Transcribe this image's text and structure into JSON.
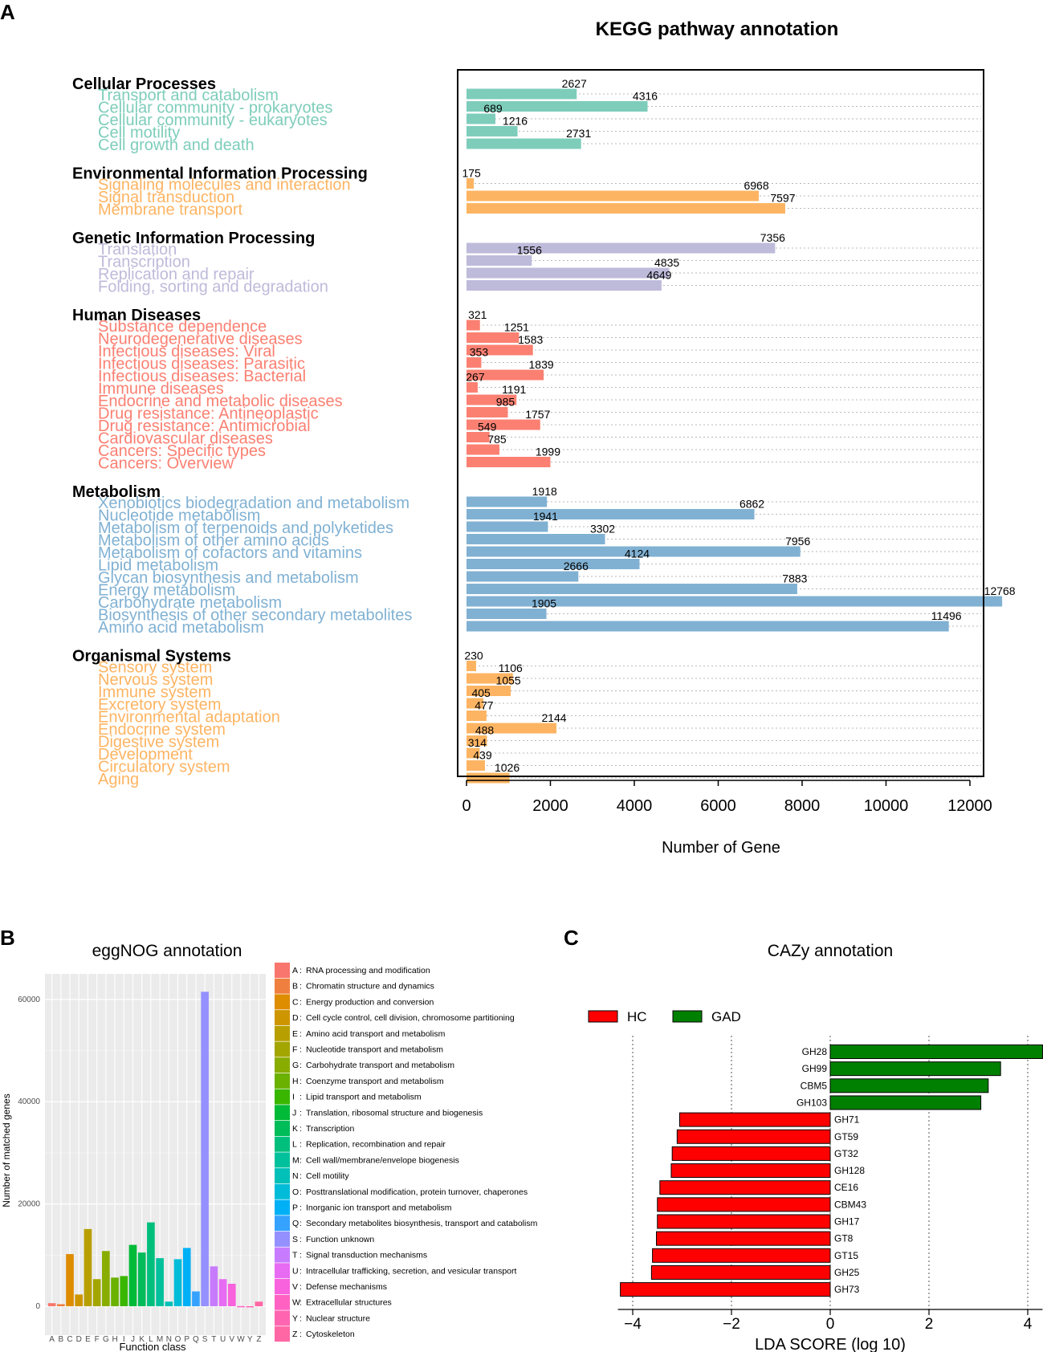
{
  "panel_letters": [
    "A",
    "B",
    "C"
  ],
  "chart_data": [
    {
      "panel": "A",
      "type": "bar",
      "orientation": "horizontal",
      "title": "KEGG pathway annotation",
      "xlabel": "Number of Gene",
      "xlim": [
        0,
        13000
      ],
      "xticks": [
        0,
        2000,
        4000,
        6000,
        8000,
        10000,
        12000
      ],
      "groups": [
        {
          "name": "Cellular Processes",
          "color": "#7ecdbb",
          "items": [
            {
              "label": "Transport and catabolism",
              "value": 2627
            },
            {
              "label": "Cellular community - prokaryotes",
              "value": 4316
            },
            {
              "label": "Cellular community - eukaryotes",
              "value": 689
            },
            {
              "label": "Cell motility",
              "value": 1216
            },
            {
              "label": "Cell growth and death",
              "value": 2731
            }
          ]
        },
        {
          "name": "Environmental Information Processing",
          "color": "#fdb462",
          "items": [
            {
              "label": "Signaling molecules and interaction",
              "value": 175
            },
            {
              "label": "Signal transduction",
              "value": 6968
            },
            {
              "label": "Membrane transport",
              "value": 7597
            }
          ]
        },
        {
          "name": "Genetic Information Processing",
          "color": "#bebada",
          "items": [
            {
              "label": "Translation",
              "value": 7356
            },
            {
              "label": "Transcription",
              "value": 1556
            },
            {
              "label": "Replication and repair",
              "value": 4835
            },
            {
              "label": "Folding, sorting and degradation",
              "value": 4649
            }
          ]
        },
        {
          "name": "Human Diseases",
          "color": "#fb8072",
          "items": [
            {
              "label": "Substance dependence",
              "value": 321
            },
            {
              "label": "Neurodegenerative diseases",
              "value": 1251
            },
            {
              "label": "Infectious diseases: Viral",
              "value": 1583
            },
            {
              "label": "Infectious diseases: Parasitic",
              "value": 353
            },
            {
              "label": "Infectious diseases: Bacterial",
              "value": 1839
            },
            {
              "label": "Immune diseases",
              "value": 267
            },
            {
              "label": "Endocrine and metabolic diseases",
              "value": 1191
            },
            {
              "label": "Drug resistance: Antineoplastic",
              "value": 985
            },
            {
              "label": "Drug resistance: Antimicrobial",
              "value": 1757
            },
            {
              "label": "Cardiovascular diseases",
              "value": 549
            },
            {
              "label": "Cancers: Specific types",
              "value": 785
            },
            {
              "label": "Cancers: Overview",
              "value": 1999
            }
          ]
        },
        {
          "name": "Metabolism",
          "color": "#80b1d3",
          "items": [
            {
              "label": "Xenobiotics biodegradation and metabolism",
              "value": 1918
            },
            {
              "label": "Nucleotide metabolism",
              "value": 6862
            },
            {
              "label": "Metabolism of terpenoids and polyketides",
              "value": 1941
            },
            {
              "label": "Metabolism of other amino acids",
              "value": 3302
            },
            {
              "label": "Metabolism of cofactors and vitamins",
              "value": 7956
            },
            {
              "label": "Lipid metabolism",
              "value": 4124
            },
            {
              "label": "Glycan biosynthesis and metabolism",
              "value": 2666
            },
            {
              "label": "Energy metabolism",
              "value": 7883
            },
            {
              "label": "Carbohydrate metabolism",
              "value": 12768
            },
            {
              "label": "Biosynthesis of other secondary metabolites",
              "value": 1905
            },
            {
              "label": "Amino acid metabolism",
              "value": 11496
            }
          ]
        },
        {
          "name": "Organismal Systems",
          "color": "#fdb462",
          "items": [
            {
              "label": "Sensory system",
              "value": 230
            },
            {
              "label": "Nervous system",
              "value": 1106
            },
            {
              "label": "Immune system",
              "value": 1055
            },
            {
              "label": "Excretory system",
              "value": 405
            },
            {
              "label": "Environmental adaptation",
              "value": 477
            },
            {
              "label": "Endocrine system",
              "value": 2144
            },
            {
              "label": "Digestive system",
              "value": 488
            },
            {
              "label": "Development",
              "value": 314
            },
            {
              "label": "Circulatory system",
              "value": 439
            },
            {
              "label": "Aging",
              "value": 1026
            }
          ]
        }
      ]
    },
    {
      "panel": "B",
      "type": "bar",
      "title": "eggNOG annotation",
      "xlabel": "Function class",
      "ylabel": "Number of matched genes",
      "ylim": [
        0,
        65000
      ],
      "yticks": [
        0,
        20000,
        40000,
        60000
      ],
      "categories": [
        {
          "code": "A",
          "desc": "RNA processing and modification",
          "value": 600,
          "color": "#f8766d"
        },
        {
          "code": "B",
          "desc": "Chromatin structure and dynamics",
          "value": 400,
          "color": "#ef7f3e"
        },
        {
          "code": "C",
          "desc": "Energy production and conversion",
          "value": 10200,
          "color": "#de8c00"
        },
        {
          "code": "D",
          "desc": "Cell cycle control, cell division, chromosome partitioning",
          "value": 2300,
          "color": "#cd9600"
        },
        {
          "code": "E",
          "desc": "Amino acid transport and metabolism",
          "value": 15100,
          "color": "#b79f00"
        },
        {
          "code": "F",
          "desc": "Nucleotide transport and metabolism",
          "value": 5300,
          "color": "#a3a500"
        },
        {
          "code": "G",
          "desc": "Carbohydrate transport and metabolism",
          "value": 10800,
          "color": "#89ac00"
        },
        {
          "code": "H",
          "desc": "Coenzyme transport and metabolism",
          "value": 5600,
          "color": "#6bb100"
        },
        {
          "code": "I",
          "desc": "Lipid transport and metabolism",
          "value": 5900,
          "color": "#39b600"
        },
        {
          "code": "J",
          "desc": "Translation, ribosomal structure and biogenesis",
          "value": 12000,
          "color": "#00ba38"
        },
        {
          "code": "K",
          "desc": "Transcription",
          "value": 10500,
          "color": "#00bc59"
        },
        {
          "code": "L",
          "desc": "Replication, recombination and repair",
          "value": 16400,
          "color": "#00bf7d"
        },
        {
          "code": "M",
          "desc": "Cell wall/membrane/envelope biogenesis",
          "value": 9400,
          "color": "#00c19c"
        },
        {
          "code": "N",
          "desc": "Cell motility",
          "value": 900,
          "color": "#00c0b8"
        },
        {
          "code": "O",
          "desc": "Posttranslational modification, protein turnover, chaperones",
          "value": 9200,
          "color": "#00bcd8"
        },
        {
          "code": "P",
          "desc": "Inorganic ion transport and metabolism",
          "value": 11400,
          "color": "#00b0f6"
        },
        {
          "code": "Q",
          "desc": "Secondary metabolites biosynthesis, transport and catabolism",
          "value": 2900,
          "color": "#35a2ff"
        },
        {
          "code": "S",
          "desc": "Function unknown",
          "value": 61500,
          "color": "#9590ff"
        },
        {
          "code": "T",
          "desc": "Signal transduction mechanisms",
          "value": 7800,
          "color": "#c77cff"
        },
        {
          "code": "U",
          "desc": "Intracellular trafficking, secretion, and vesicular transport",
          "value": 5300,
          "color": "#e76bf3"
        },
        {
          "code": "V",
          "desc": "Defense mechanisms",
          "value": 4400,
          "color": "#f962dd"
        },
        {
          "code": "W",
          "desc": "Extracellular structures",
          "value": 40,
          "color": "#ff61c3"
        },
        {
          "code": "Y",
          "desc": "Nuclear structure",
          "value": 20,
          "color": "#ff64b0"
        },
        {
          "code": "Z",
          "desc": "Cytoskeleton",
          "value": 900,
          "color": "#ff67a4"
        }
      ]
    },
    {
      "panel": "C",
      "type": "bar",
      "orientation": "horizontal",
      "title": "CAZy annotation",
      "xlabel": "LDA SCORE (log 10)",
      "xlim": [
        -4.3,
        4.3
      ],
      "xticks": [
        -4,
        -2,
        0,
        2,
        4
      ],
      "xtick_labels": [
        "−4",
        "−2",
        "0",
        "2",
        "4"
      ],
      "legend": [
        {
          "name": "HC",
          "color": "#ff0000"
        },
        {
          "name": "GAD",
          "color": "#008000"
        }
      ],
      "items": [
        {
          "label": "GH28",
          "value": 4.3,
          "group": "GAD"
        },
        {
          "label": "GH99",
          "value": 3.45,
          "group": "GAD"
        },
        {
          "label": "CBM5",
          "value": 3.2,
          "group": "GAD"
        },
        {
          "label": "GH103",
          "value": 3.05,
          "group": "GAD"
        },
        {
          "label": "GH71",
          "value": -3.05,
          "group": "HC"
        },
        {
          "label": "GT59",
          "value": -3.1,
          "group": "HC"
        },
        {
          "label": "GT32",
          "value": -3.2,
          "group": "HC"
        },
        {
          "label": "GH128",
          "value": -3.22,
          "group": "HC"
        },
        {
          "label": "CE16",
          "value": -3.45,
          "group": "HC"
        },
        {
          "label": "CBM43",
          "value": -3.5,
          "group": "HC"
        },
        {
          "label": "GH17",
          "value": -3.5,
          "group": "HC"
        },
        {
          "label": "GT8",
          "value": -3.52,
          "group": "HC"
        },
        {
          "label": "GT15",
          "value": -3.6,
          "group": "HC"
        },
        {
          "label": "GH25",
          "value": -3.62,
          "group": "HC"
        },
        {
          "label": "GH73",
          "value": -4.25,
          "group": "HC"
        }
      ]
    }
  ]
}
